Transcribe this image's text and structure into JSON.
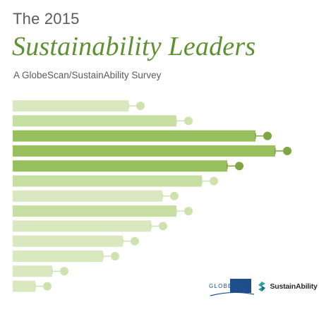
{
  "cover": {
    "year_line": "The 2015",
    "title": "Sustainability Leaders",
    "subtitle": "A GlobeScan/SustainAbility Survey"
  },
  "colors": {
    "heading_gray": "#5b5b5b",
    "title_green": "#5e9132",
    "bar_light": "#d9e8bf",
    "bar_mid": "#c8dfa3",
    "bar_dark": "#98bf5e",
    "marker_light": "#cfe2ad",
    "marker_dark": "#7ea643",
    "globescan_blue": "#1f4f8a"
  },
  "bars": [
    {
      "shade": "light",
      "length": 0.41
    },
    {
      "shade": "mid",
      "length": 0.58
    },
    {
      "shade": "dark",
      "length": 0.86
    },
    {
      "shade": "dark",
      "length": 0.93
    },
    {
      "shade": "dark",
      "length": 0.76
    },
    {
      "shade": "mid",
      "length": 0.67
    },
    {
      "shade": "light",
      "length": 0.53
    },
    {
      "shade": "mid",
      "length": 0.58
    },
    {
      "shade": "light",
      "length": 0.49
    },
    {
      "shade": "light",
      "length": 0.39
    },
    {
      "shade": "light",
      "length": 0.32
    },
    {
      "shade": "light",
      "length": 0.14
    },
    {
      "shade": "light",
      "length": 0.08
    }
  ],
  "logos": {
    "globescan": "GLOBESCAN",
    "globescan_icon": "globescan-logo-icon",
    "sustainability": "SustainAbility",
    "sustainability_icon": "sustainability-logo-icon"
  }
}
